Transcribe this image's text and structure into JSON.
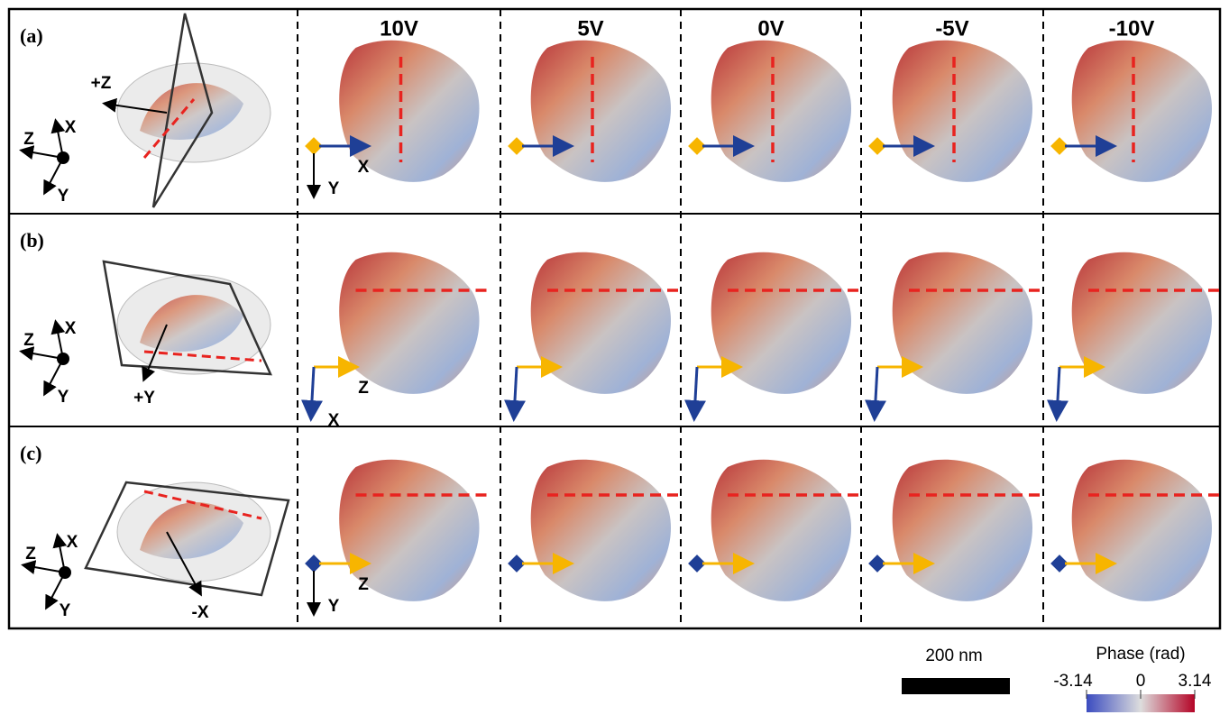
{
  "panels": [
    {
      "label": "(a)",
      "triad": [
        "Z",
        "X",
        "Y"
      ],
      "direction": "+Z",
      "frame_axes": [
        "X",
        "Y"
      ]
    },
    {
      "label": "(b)",
      "triad": [
        "Z",
        "X",
        "Y"
      ],
      "direction": "+Y",
      "frame_axes": [
        "Z",
        "X"
      ]
    },
    {
      "label": "(c)",
      "triad": [
        "Z",
        "X",
        "Y"
      ],
      "direction": "-X",
      "frame_axes": [
        "Z",
        "Y"
      ]
    }
  ],
  "voltages": [
    "10V",
    "5V",
    "0V",
    "-5V",
    "-10V"
  ],
  "scale_bar": "200 nm",
  "colorbar": {
    "title": "Phase (rad)",
    "ticks": [
      "-3.14",
      "0",
      "3.14"
    ]
  }
}
